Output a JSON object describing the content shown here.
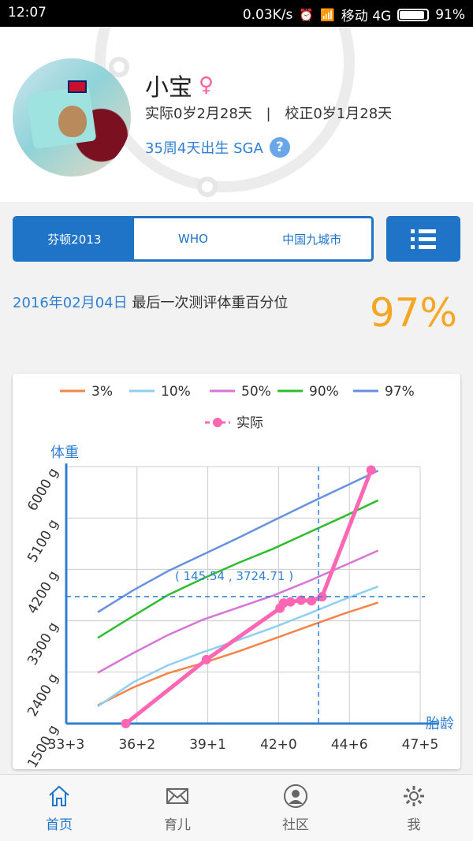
{
  "status": {
    "time": "12:07",
    "speed": "0.03K/s",
    "carrier": "移动 4G",
    "battery": "91%",
    "battery_level": 0.91
  },
  "profile": {
    "name": "小宝",
    "age_actual": "实际0岁2月28天",
    "separator": "|",
    "age_corrected": "校正0岁1月28天",
    "birth_info": "35周4天出生 SGA"
  },
  "tabs": [
    {
      "label": "芬顿2013",
      "active": true
    },
    {
      "label": "WHO",
      "active": false
    },
    {
      "label": "中国九城市",
      "active": false
    }
  ],
  "summary": {
    "date": "2016年02月04日",
    "text": "最后一次测评体重百分位",
    "percent": "97%"
  },
  "chart_data": {
    "type": "line",
    "ylabel": "体重",
    "xlabel": "胎龄",
    "x_tick_labels": [
      "33+3",
      "36+2",
      "39+1",
      "42+0",
      "44+6",
      "47+5"
    ],
    "y_tick_labels": [
      "1500 g",
      "2400 g",
      "3300 g",
      "4200 g",
      "5100 g",
      "6000 g"
    ],
    "xlim": [
      233,
      334
    ],
    "ylim": [
      1500,
      6000
    ],
    "legend": [
      "3%",
      "10%",
      "50%",
      "90%",
      "97%",
      "实际"
    ],
    "colors": {
      "3%": "#f4844a",
      "10%": "#8ecff2",
      "50%": "#d675d6",
      "90%": "#2fbd2f",
      "97%": "#6791e0",
      "实际": "#ff66b3"
    },
    "crosshair_label": "( 145.54 , 3724.71 )",
    "crosshair": {
      "x": 305,
      "y": 3724.71
    },
    "series": [
      {
        "name": "3%",
        "x": [
          242,
          252,
          262,
          272,
          282,
          292,
          302,
          312,
          322
        ],
        "y": [
          1820,
          2130,
          2380,
          2560,
          2760,
          2980,
          3200,
          3420,
          3620
        ]
      },
      {
        "name": "10%",
        "x": [
          242,
          252,
          262,
          272,
          282,
          292,
          302,
          312,
          322
        ],
        "y": [
          1800,
          2220,
          2520,
          2750,
          2960,
          3180,
          3420,
          3670,
          3900
        ]
      },
      {
        "name": "50%",
        "x": [
          242,
          252,
          262,
          272,
          282,
          292,
          302,
          312,
          322
        ],
        "y": [
          2390,
          2730,
          3050,
          3320,
          3530,
          3740,
          3990,
          4260,
          4530
        ]
      },
      {
        "name": "90%",
        "x": [
          242,
          252,
          262,
          272,
          282,
          292,
          302,
          312,
          322
        ],
        "y": [
          3000,
          3380,
          3750,
          4040,
          4310,
          4560,
          4840,
          5120,
          5410
        ]
      },
      {
        "name": "97%",
        "x": [
          242,
          252,
          262,
          272,
          282,
          292,
          302,
          312,
          322
        ],
        "y": [
          3450,
          3830,
          4170,
          4460,
          4750,
          5050,
          5350,
          5640,
          5930
        ]
      },
      {
        "name": "实际",
        "x": [
          250,
          273,
          294,
          295,
          297,
          300,
          303,
          306,
          320
        ],
        "y": [
          1500,
          2620,
          3520,
          3610,
          3630,
          3660,
          3650,
          3720,
          5940
        ]
      }
    ]
  },
  "nav": [
    {
      "label": "首页",
      "icon": "home-icon",
      "active": true
    },
    {
      "label": "育儿",
      "icon": "mail-icon",
      "active": false
    },
    {
      "label": "社区",
      "icon": "community-icon",
      "active": false
    },
    {
      "label": "我",
      "icon": "gear-icon",
      "active": false
    }
  ]
}
